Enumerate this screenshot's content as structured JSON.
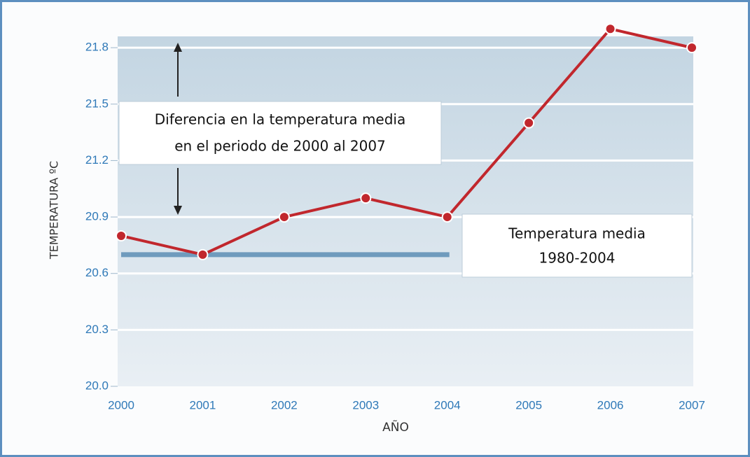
{
  "chart_data": {
    "type": "line",
    "xlabel": "AÑO",
    "ylabel": "TEMPERATURA ºC",
    "categories": [
      "2000",
      "2001",
      "2002",
      "2003",
      "2004",
      "2005",
      "2006",
      "2007"
    ],
    "series": [
      {
        "color": "#c1272d",
        "values": [
          20.8,
          20.7,
          20.9,
          21.0,
          20.9,
          21.4,
          21.9,
          21.8
        ]
      }
    ],
    "ylim": [
      20.0,
      21.86
    ],
    "yticks": [
      {
        "value": 20.0,
        "label": "20.0"
      },
      20.3,
      20.6,
      20.9,
      21.2,
      21.5,
      21.8
    ],
    "grid": true,
    "reference_line": {
      "value": 20.7,
      "color": "#6f9bbd",
      "from": "2000",
      "to": "2004",
      "label": [
        "Temperatura media",
        "1980-2004"
      ]
    },
    "annotation": {
      "label": [
        "Diferencia en la temperatura media",
        "en el periodo de 2000 al 2007"
      ]
    }
  }
}
